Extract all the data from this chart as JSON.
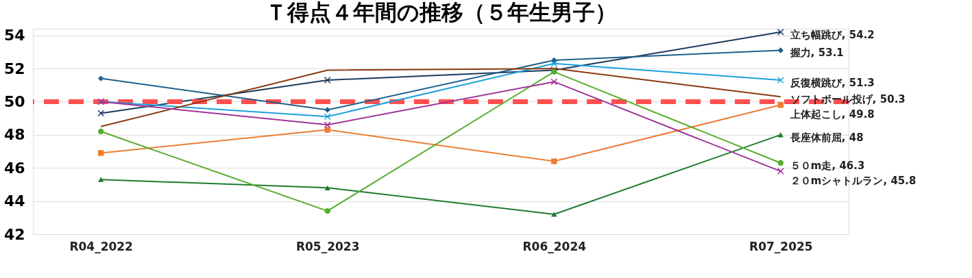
{
  "chart_data": {
    "type": "line",
    "title": "Ｔ得点４年間の推移（５年生男子）",
    "categories": [
      "R04_2022",
      "R05_2023",
      "R06_2024",
      "R07_2025"
    ],
    "ylim": [
      42,
      54.4
    ],
    "yticks": [
      42,
      44,
      46,
      48,
      50,
      52,
      54
    ],
    "grid": "y",
    "ref_lines": [
      {
        "axis": "y",
        "value": 50,
        "label": null,
        "color": "#ff5050",
        "line_style": "dashed"
      }
    ],
    "series": [
      {
        "color": "#1b3a5c",
        "marker": "cross",
        "values": [
          49.3,
          51.3,
          51.9,
          54.2
        ],
        "value_labels": [
          null,
          null,
          null,
          "立ち幅跳び, 54.2"
        ]
      },
      {
        "color": "#1f5f8b",
        "marker": "diamond",
        "values": [
          51.4,
          49.5,
          52.5,
          53.1
        ],
        "value_labels": [
          null,
          null,
          null,
          "握力, 53.1"
        ]
      },
      {
        "color": "#1ca0dc",
        "marker": "cross",
        "values": [
          50.0,
          49.1,
          52.3,
          51.3
        ],
        "value_labels": [
          null,
          null,
          null,
          "反復横跳び, 51.3"
        ]
      },
      {
        "color": "#8b3a0f",
        "marker": "none",
        "values": [
          48.5,
          51.9,
          52.0,
          50.3
        ],
        "value_labels": [
          null,
          null,
          null,
          "ソフトボール投げ, 50.3"
        ]
      },
      {
        "color": "#ed7d31",
        "marker": "square",
        "values": [
          46.9,
          48.3,
          46.4,
          49.8
        ],
        "value_labels": [
          null,
          null,
          null,
          "上体起こし, 49.8"
        ]
      },
      {
        "color": "#1e7b2e",
        "marker": "triangle",
        "values": [
          45.3,
          44.8,
          43.2,
          48
        ],
        "value_labels": [
          null,
          null,
          null,
          "長座体前屈, 48"
        ]
      },
      {
        "color": "#56ad2d",
        "marker": "circle",
        "values": [
          48.2,
          43.4,
          51.8,
          46.3
        ],
        "value_labels": [
          null,
          null,
          null,
          "５０m走, 46.3"
        ]
      },
      {
        "color": "#a0339a",
        "marker": "cross",
        "values": [
          50.0,
          48.6,
          51.2,
          45.8
        ],
        "value_labels": [
          null,
          null,
          null,
          "２０mシャトルラン, 45.8"
        ]
      }
    ]
  }
}
